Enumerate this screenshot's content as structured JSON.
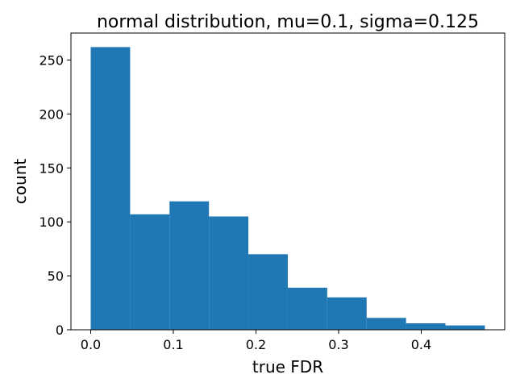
{
  "chart_data": {
    "type": "bar",
    "title": "normal distribution, mu=0.1, sigma=0.125",
    "xlabel": "true FDR",
    "ylabel": "count",
    "bin_edges": [
      0.0,
      0.0477,
      0.0954,
      0.1431,
      0.1908,
      0.2385,
      0.2862,
      0.3339,
      0.3816,
      0.4293,
      0.477
    ],
    "values": [
      262,
      107,
      119,
      105,
      70,
      39,
      30,
      11,
      6,
      4
    ],
    "xlim": [
      -0.0239,
      0.501
    ],
    "ylim": [
      0,
      275
    ],
    "xticks": [
      0.0,
      0.1,
      0.2,
      0.3,
      0.4
    ],
    "xtick_labels": [
      "0.0",
      "0.1",
      "0.2",
      "0.3",
      "0.4"
    ],
    "yticks": [
      0,
      50,
      100,
      150,
      200,
      250
    ],
    "ytick_labels": [
      "0",
      "50",
      "100",
      "150",
      "200",
      "250"
    ],
    "bar_color": "#1f77b4",
    "grid": false,
    "legend": "none"
  }
}
